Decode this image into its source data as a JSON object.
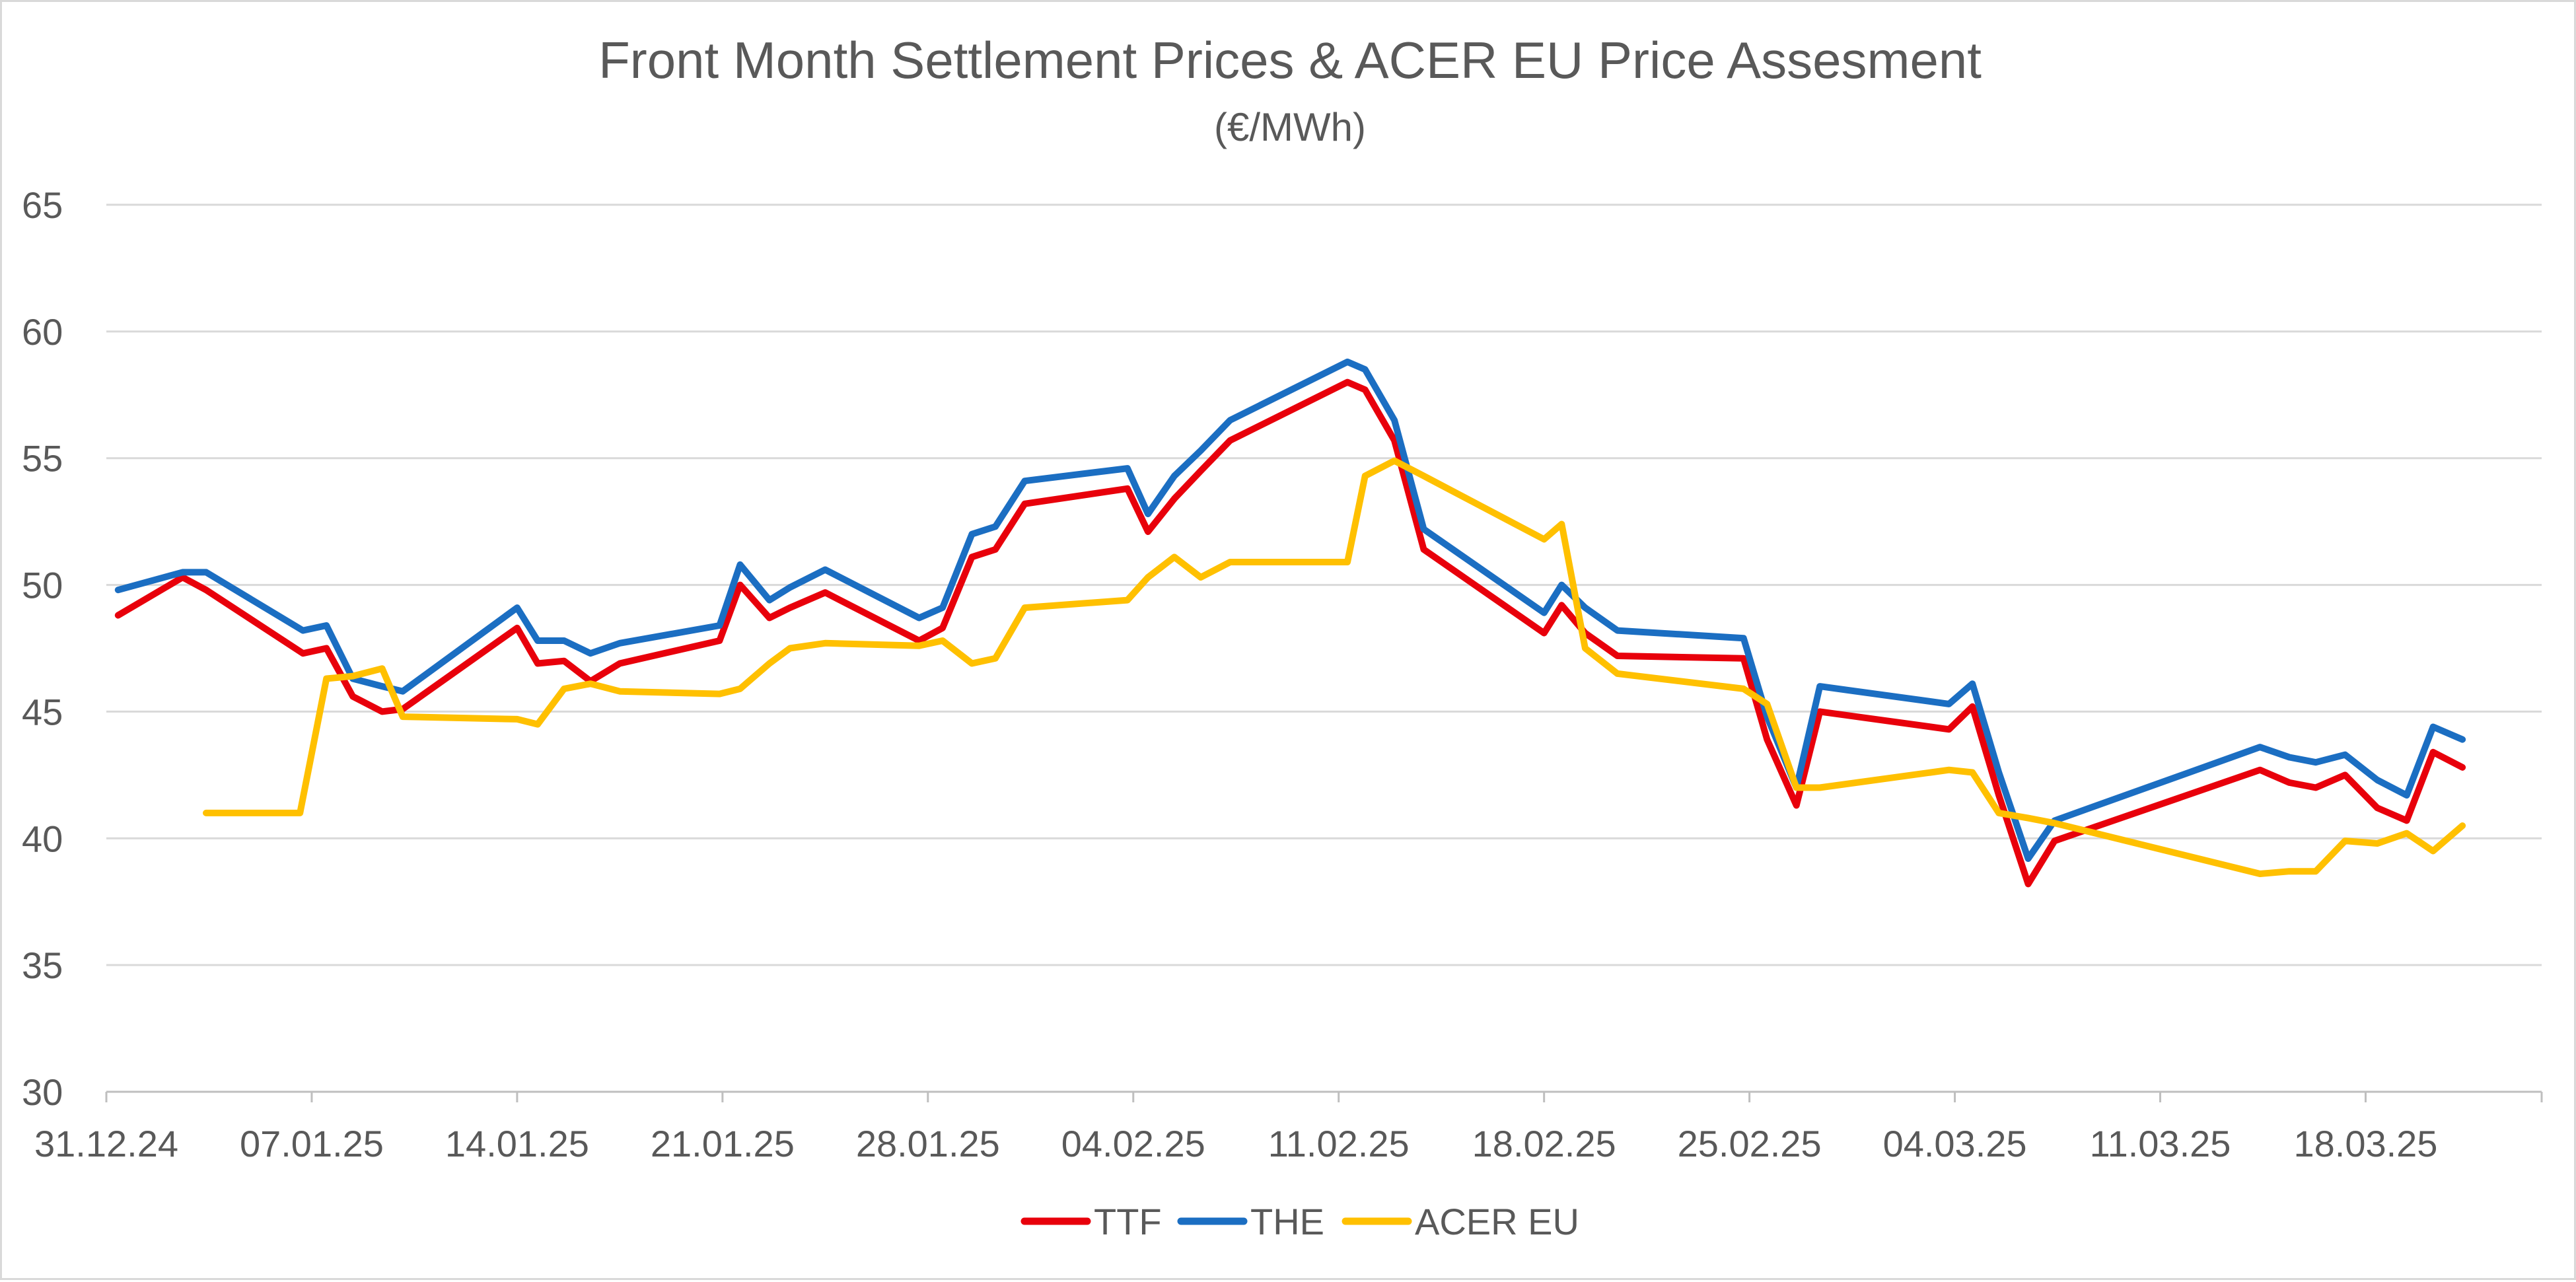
{
  "chart_data": {
    "type": "line",
    "title": "Front Month Settlement Prices & ACER EU Price Assesment",
    "subtitle": "(€/MWh)",
    "xlabel": "",
    "ylabel": "",
    "ylim": [
      30,
      65
    ],
    "yticks": [
      "30",
      "35",
      "40",
      "45",
      "50",
      "55",
      "60",
      "65"
    ],
    "x_range_days": [
      0,
      83
    ],
    "x_tick_labels": [
      "31.12.24",
      "07.01.25",
      "14.01.25",
      "21.01.25",
      "28.01.25",
      "04.02.25",
      "11.02.25",
      "18.02.25",
      "25.02.25",
      "04.03.25",
      "11.03.25",
      "18.03.25"
    ],
    "x_tick_days": [
      0,
      7,
      14,
      21,
      28,
      35,
      42,
      49,
      56,
      63,
      70,
      77
    ],
    "grid": true,
    "legend_position": "bottom",
    "series": [
      {
        "name": "TTF",
        "color": "#e8000b",
        "x": [
          0.4,
          2.6,
          3.4,
          6.7,
          7.5,
          8.4,
          9.4,
          10.1,
          14.0,
          14.7,
          15.6,
          16.5,
          17.5,
          20.9,
          21.6,
          22.6,
          23.3,
          24.5,
          27.7,
          28.5,
          29.5,
          30.3,
          31.3,
          34.8,
          35.5,
          36.4,
          37.3,
          38.3,
          42.3,
          42.9,
          43.9,
          44.9,
          49.0,
          49.6,
          50.4,
          51.5,
          55.8,
          56.6,
          57.6,
          58.4,
          62.8,
          63.6,
          64.5,
          65.5,
          66.4,
          73.4,
          74.4,
          75.3,
          76.3,
          77.4,
          78.4,
          79.3,
          80.3
        ],
        "y": [
          48.8,
          50.3,
          49.8,
          47.3,
          47.5,
          45.6,
          45.0,
          45.1,
          48.3,
          46.9,
          47.0,
          46.2,
          46.9,
          47.8,
          50.0,
          48.7,
          49.1,
          49.7,
          47.8,
          48.3,
          51.1,
          51.4,
          53.2,
          53.8,
          52.1,
          53.4,
          54.5,
          55.7,
          58.0,
          57.7,
          55.7,
          51.4,
          48.1,
          49.2,
          48.1,
          47.2,
          47.1,
          43.9,
          41.3,
          45.0,
          44.3,
          45.2,
          41.7,
          38.2,
          39.9,
          42.7,
          42.2,
          42.0,
          42.5,
          41.2,
          40.7,
          43.4,
          42.8
        ]
      },
      {
        "name": "THE",
        "color": "#1b6ec2",
        "x": [
          0.4,
          2.6,
          3.4,
          6.7,
          7.5,
          8.4,
          9.4,
          10.1,
          14.0,
          14.7,
          15.6,
          16.5,
          17.5,
          20.9,
          21.6,
          22.6,
          23.3,
          24.5,
          27.7,
          28.5,
          29.5,
          30.3,
          31.3,
          34.8,
          35.5,
          36.4,
          37.3,
          38.3,
          42.3,
          42.9,
          43.9,
          44.9,
          49.0,
          49.6,
          50.4,
          51.5,
          55.8,
          56.6,
          57.6,
          58.4,
          62.8,
          63.6,
          64.5,
          65.5,
          66.4,
          73.4,
          74.4,
          75.3,
          76.3,
          77.4,
          78.4,
          79.3,
          80.3
        ],
        "y": [
          49.8,
          50.5,
          50.5,
          48.2,
          48.4,
          46.3,
          46.0,
          45.8,
          49.1,
          47.8,
          47.8,
          47.3,
          47.7,
          48.4,
          50.8,
          49.4,
          49.9,
          50.6,
          48.7,
          49.1,
          52.0,
          52.3,
          54.1,
          54.6,
          52.8,
          54.3,
          55.3,
          56.5,
          58.8,
          58.5,
          56.5,
          52.2,
          48.9,
          50.0,
          49.1,
          48.2,
          47.9,
          44.8,
          42.0,
          46.0,
          45.3,
          46.1,
          42.6,
          39.2,
          40.7,
          43.6,
          43.2,
          43.0,
          43.3,
          42.3,
          41.7,
          44.4,
          43.9
        ]
      },
      {
        "name": "ACER EU",
        "color": "#ffc000",
        "x": [
          3.4,
          6.6,
          7.5,
          8.4,
          9.4,
          10.1,
          14.0,
          14.7,
          15.6,
          16.5,
          17.5,
          20.9,
          21.6,
          22.6,
          23.3,
          24.5,
          27.7,
          28.5,
          29.5,
          30.3,
          31.3,
          34.8,
          35.5,
          36.4,
          37.3,
          38.3,
          42.3,
          42.9,
          43.9,
          44.9,
          49.0,
          49.6,
          50.4,
          51.5,
          55.8,
          56.6,
          57.6,
          58.4,
          62.8,
          63.6,
          64.5,
          65.5,
          66.4,
          73.4,
          74.4,
          75.3,
          76.3,
          77.4,
          78.4,
          79.3,
          80.3
        ],
        "y": [
          41.0,
          41.0,
          46.3,
          46.4,
          46.7,
          44.8,
          44.7,
          44.5,
          45.9,
          46.1,
          45.8,
          45.7,
          45.9,
          46.9,
          47.5,
          47.7,
          47.6,
          47.8,
          46.9,
          47.1,
          49.1,
          49.4,
          50.3,
          51.1,
          50.3,
          50.9,
          50.9,
          54.3,
          54.9,
          54.3,
          51.8,
          52.4,
          47.5,
          46.5,
          45.9,
          45.3,
          42.0,
          42.0,
          42.7,
          42.6,
          41.0,
          40.8,
          40.6,
          38.6,
          38.7,
          38.7,
          39.9,
          39.8,
          40.2,
          39.5,
          40.5
        ]
      }
    ]
  }
}
